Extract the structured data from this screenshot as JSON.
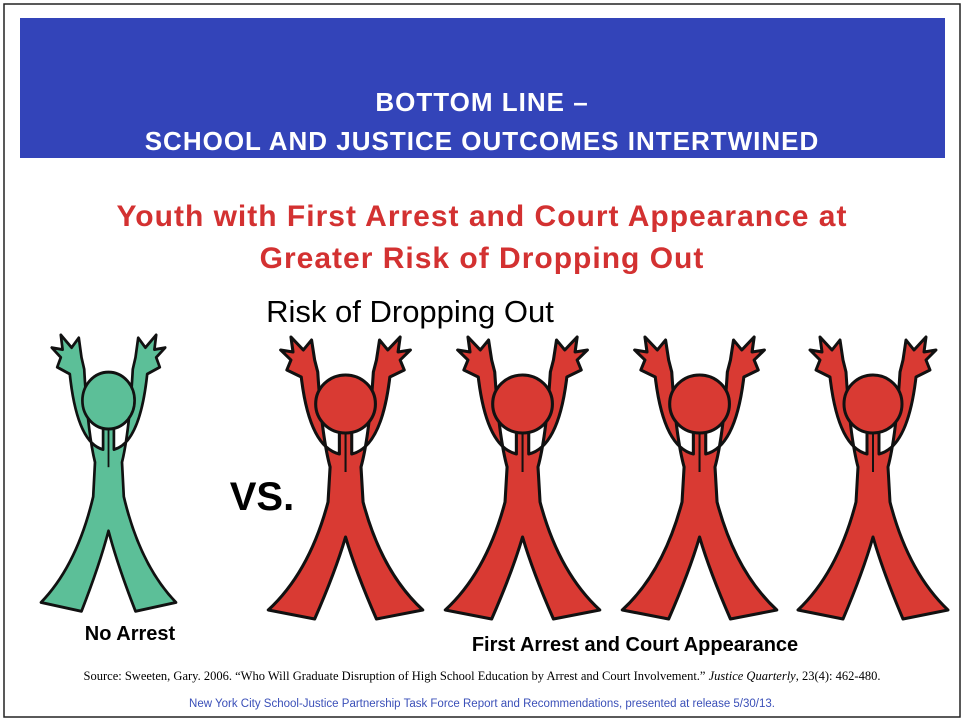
{
  "header": {
    "line1": "BOTTOM LINE –",
    "line2": "SCHOOL AND JUSTICE OUTCOMES INTERTWINED"
  },
  "subtitle": {
    "line1": "Youth with First Arrest and Court Appearance at",
    "line2": "Greater Risk of Dropping Out"
  },
  "figure_title": "Risk of Dropping Out",
  "versus": "VS.",
  "left_label": "No Arrest",
  "right_label": "First Arrest and Court Appearance",
  "source": {
    "before": "Source: Sweeten, Gary. 2006. “Who Will Graduate Disruption of High School Education by Arrest and Court Involvement.” ",
    "journal": "Justice Quarterly",
    "after": ", 23(4): 462-480."
  },
  "footer": "New York City School-Justice Partnership Task Force Report and Recommendations, presented at release 5/30/13."
}
